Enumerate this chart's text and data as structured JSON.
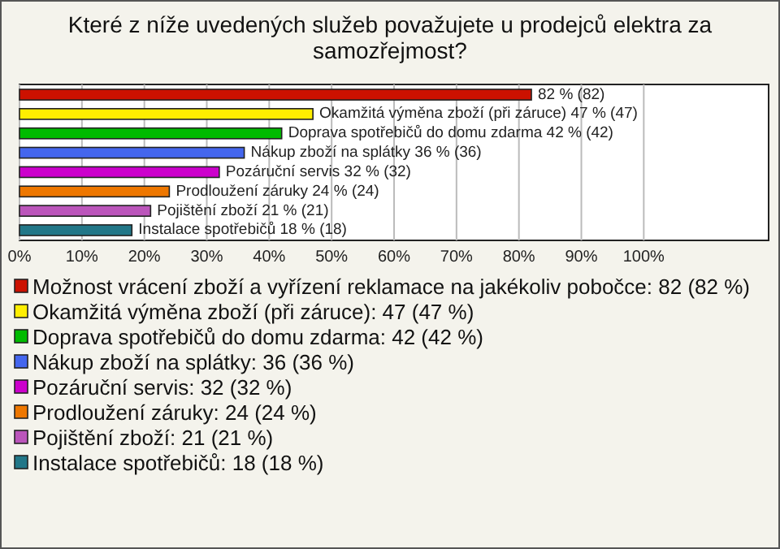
{
  "chart_data": {
    "type": "bar",
    "orientation": "horizontal",
    "stacked": true,
    "title": "Které z níže uvedených služeb považujete u prodejců elektra za samozřejmost?",
    "categories": [
      null,
      null,
      null,
      null,
      null,
      null,
      null,
      null
    ],
    "series": [
      {
        "name": "Možnost vrácení zboží a vyřízení reklamace na jakékoliv pobočce: 82 (82 %)",
        "color": "#cc1100",
        "values": [
          82,
          null,
          null,
          null,
          null,
          null,
          null,
          null
        ],
        "value_labels": [
          "82 % (82)",
          null,
          null,
          null,
          null,
          null,
          null,
          null
        ]
      },
      {
        "name": "Okamžitá výměna zboží (při záruce): 47 (47 %)",
        "color": "#ffee00",
        "values": [
          null,
          47,
          null,
          null,
          null,
          null,
          null,
          null
        ],
        "value_labels": [
          null,
          "Okamžitá výměna zboží (při záruce) 47 % (47)",
          null,
          null,
          null,
          null,
          null,
          null
        ]
      },
      {
        "name": "Doprava spotřebičů do domu zdarma: 42 (42 %)",
        "color": "#00bb00",
        "values": [
          null,
          null,
          42,
          null,
          null,
          null,
          null,
          null
        ],
        "value_labels": [
          null,
          null,
          "Doprava spotřebičů do domu zdarma 42 % (42)",
          null,
          null,
          null,
          null,
          null
        ]
      },
      {
        "name": "Nákup zboží na splátky: 36 (36 %)",
        "color": "#4466ee",
        "values": [
          null,
          null,
          null,
          36,
          null,
          null,
          null,
          null
        ],
        "value_labels": [
          null,
          null,
          null,
          "Nákup zboží na splátky 36 % (36)",
          null,
          null,
          null,
          null
        ]
      },
      {
        "name": "Pozáruční servis: 32 (32 %)",
        "color": "#cc00cc",
        "values": [
          null,
          null,
          null,
          null,
          32,
          null,
          null,
          null
        ],
        "value_labels": [
          null,
          null,
          null,
          null,
          "Pozáruční servis 32 % (32)",
          null,
          null,
          null
        ]
      },
      {
        "name": "Prodloužení záruky: 24 (24 %)",
        "color": "#ee7700",
        "values": [
          null,
          null,
          null,
          null,
          null,
          24,
          null,
          null
        ],
        "value_labels": [
          null,
          null,
          null,
          null,
          null,
          "Prodloužení záruky 24 % (24)",
          null,
          null
        ]
      },
      {
        "name": "Pojištění zboží: 21 (21 %)",
        "color": "#bb55bb",
        "values": [
          null,
          null,
          null,
          null,
          null,
          null,
          21,
          null
        ],
        "value_labels": [
          null,
          null,
          null,
          null,
          null,
          null,
          "Pojištění zboží 21 % (21)",
          null
        ]
      },
      {
        "name": "Instalace spotřebičů: 18 (18 %)",
        "color": "#227788",
        "values": [
          null,
          null,
          null,
          null,
          null,
          null,
          null,
          18
        ],
        "value_labels": [
          null,
          null,
          null,
          null,
          null,
          null,
          null,
          "Instalace spotřebičů 18 % (18)"
        ]
      }
    ],
    "xlim": [
      0,
      120
    ],
    "xticks": [
      {
        "value": 0,
        "label": "0%"
      },
      {
        "value": 10,
        "label": "10%"
      },
      {
        "value": 20,
        "label": "20%"
      },
      {
        "value": 30,
        "label": "30%"
      },
      {
        "value": 40,
        "label": "40%"
      },
      {
        "value": 50,
        "label": "50%"
      },
      {
        "value": 60,
        "label": "60%"
      },
      {
        "value": 70,
        "label": "70%"
      },
      {
        "value": 80,
        "label": "80%"
      },
      {
        "value": 90,
        "label": "90%"
      },
      {
        "value": 100,
        "label": "100%"
      }
    ],
    "grid": "x",
    "tick_labels": "x",
    "legend": "bottom"
  }
}
